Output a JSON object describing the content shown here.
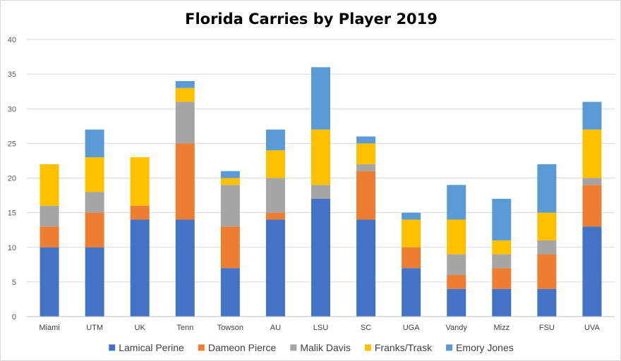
{
  "chart_data": {
    "type": "bar",
    "stacked": true,
    "title": "Florida Carries by Player 2019",
    "xlabel": "",
    "ylabel": "",
    "ylim": [
      0,
      40
    ],
    "yticks": [
      0,
      5,
      10,
      15,
      20,
      25,
      30,
      35,
      40
    ],
    "grid": true,
    "legend_position": "bottom",
    "categories": [
      "Miami",
      "UTM",
      "UK",
      "Tenn",
      "Towson",
      "AU",
      "LSU",
      "SC",
      "UGA",
      "Vandy",
      "Mizz",
      "FSU",
      "UVA"
    ],
    "series": [
      {
        "name": "Lamical Perine",
        "color": "#4472C4",
        "values": [
          10,
          10,
          14,
          14,
          7,
          14,
          17,
          14,
          7,
          4,
          4,
          4,
          13
        ]
      },
      {
        "name": "Dameon Pierce",
        "color": "#ED7D31",
        "values": [
          3,
          5,
          2,
          11,
          6,
          1,
          0,
          7,
          3,
          2,
          3,
          5,
          6
        ]
      },
      {
        "name": "Malik Davis",
        "color": "#A5A5A5",
        "values": [
          3,
          3,
          0,
          6,
          6,
          5,
          2,
          1,
          0,
          3,
          2,
          2,
          1
        ]
      },
      {
        "name": "Franks/Trask",
        "color": "#FFC000",
        "values": [
          6,
          5,
          7,
          2,
          1,
          4,
          8,
          3,
          4,
          5,
          2,
          4,
          7
        ]
      },
      {
        "name": "Emory Jones",
        "color": "#5B9BD5",
        "values": [
          0,
          4,
          0,
          1,
          1,
          3,
          9,
          1,
          1,
          5,
          6,
          7,
          4
        ]
      }
    ]
  }
}
